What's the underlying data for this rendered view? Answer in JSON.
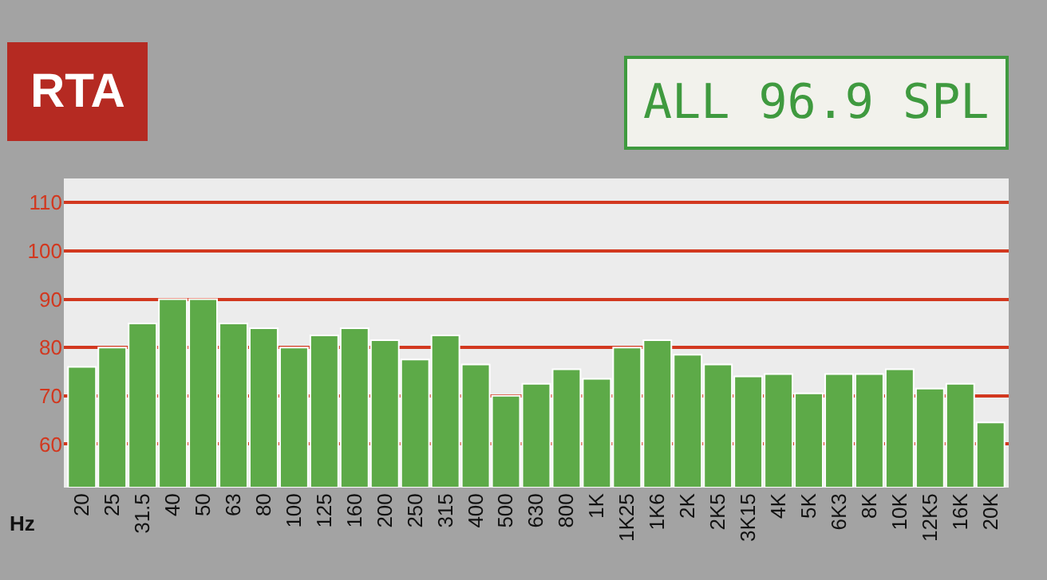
{
  "chart_data": {
    "type": "bar",
    "title": "RTA",
    "xlabel": "Hz",
    "annotations": [
      "ALL 96.9 SPL"
    ],
    "categories": [
      "20",
      "25",
      "31.5",
      "40",
      "50",
      "63",
      "80",
      "100",
      "125",
      "160",
      "200",
      "250",
      "315",
      "400",
      "500",
      "630",
      "800",
      "1K",
      "1K25",
      "1K6",
      "2K",
      "2K5",
      "3K15",
      "4K",
      "5K",
      "6K3",
      "8K",
      "10K",
      "12K5",
      "16K",
      "20K"
    ],
    "values": [
      76,
      80,
      85,
      90,
      90,
      85,
      84,
      80,
      82.5,
      84,
      81.5,
      77.5,
      82.5,
      76.5,
      70,
      72.5,
      75.5,
      73.5,
      80,
      81.5,
      78.5,
      76.5,
      74,
      74.5,
      70.5,
      74.5,
      74.5,
      75.5,
      71.5,
      72.5,
      64.5
    ],
    "color": "#5daa48",
    "ylim": [
      51,
      115
    ],
    "yticks": [
      60,
      70,
      80,
      90,
      100,
      110
    ],
    "grid": "y",
    "legend": false
  }
}
